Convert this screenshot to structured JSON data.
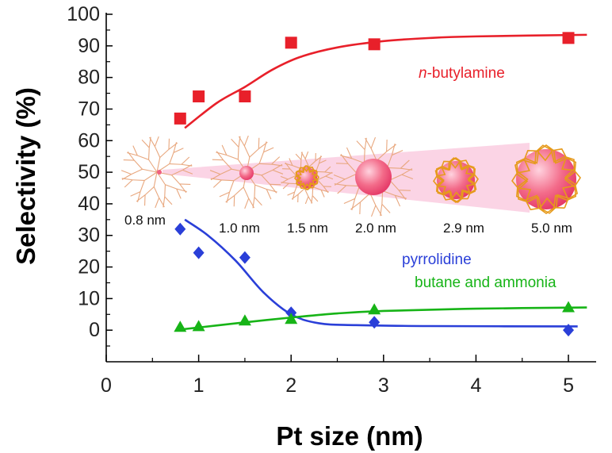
{
  "chart_data": {
    "type": "scatter",
    "xlabel": "Pt size (nm)",
    "ylabel": "Selectivity (%)",
    "xlim": [
      0,
      5.3
    ],
    "ylim": [
      -10,
      100
    ],
    "x_ticks": [
      0,
      1,
      2,
      3,
      4,
      5
    ],
    "y_ticks": [
      0,
      10,
      20,
      30,
      40,
      50,
      60,
      70,
      80,
      90,
      100
    ],
    "grid": false,
    "series": [
      {
        "name": "n-butylamine",
        "name_prefix": "n",
        "name_rest": "-butylamine",
        "marker": "square",
        "color": "#e8202a",
        "x": [
          0.8,
          1.0,
          1.5,
          2.0,
          2.9,
          5.0
        ],
        "y": [
          67,
          74,
          74,
          91,
          90.5,
          92.5
        ],
        "fit": [
          [
            0.85,
            64
          ],
          [
            1.2,
            72
          ],
          [
            1.5,
            77
          ],
          [
            1.8,
            82.5
          ],
          [
            2.1,
            86.5
          ],
          [
            2.5,
            89.5
          ],
          [
            3.0,
            91.5
          ],
          [
            3.5,
            92.5
          ],
          [
            4.0,
            93
          ],
          [
            5.2,
            93.5
          ]
        ]
      },
      {
        "name": "pyrrolidine",
        "marker": "diamond",
        "color": "#2a3fd8",
        "x": [
          0.8,
          1.0,
          1.5,
          2.0,
          2.9,
          5.0
        ],
        "y": [
          32,
          24.5,
          23,
          5.5,
          2.5,
          0
        ],
        "fit": [
          [
            0.85,
            35
          ],
          [
            1.1,
            30
          ],
          [
            1.4,
            22
          ],
          [
            1.7,
            12
          ],
          [
            2.0,
            5
          ],
          [
            2.3,
            2.2
          ],
          [
            2.7,
            1.6
          ],
          [
            3.5,
            1.3
          ],
          [
            5.1,
            1.2
          ]
        ]
      },
      {
        "name": "butane and ammonia",
        "marker": "triangle",
        "color": "#17b417",
        "x": [
          0.8,
          1.0,
          1.5,
          2.0,
          2.9,
          5.0
        ],
        "y": [
          1,
          1.2,
          3,
          3.5,
          6.5,
          7.2
        ],
        "fit": [
          [
            0.8,
            0.2
          ],
          [
            1.2,
            1.5
          ],
          [
            1.6,
            2.8
          ],
          [
            2.0,
            4
          ],
          [
            2.5,
            5.3
          ],
          [
            3.0,
            6.1
          ],
          [
            4.0,
            6.8
          ],
          [
            5.2,
            7.2
          ]
        ]
      }
    ],
    "inset": {
      "size_labels": [
        "0.8 nm",
        "1.0 nm",
        "1.5 nm",
        "2.0 nm",
        "2.9 nm",
        "5.0 nm"
      ]
    }
  }
}
